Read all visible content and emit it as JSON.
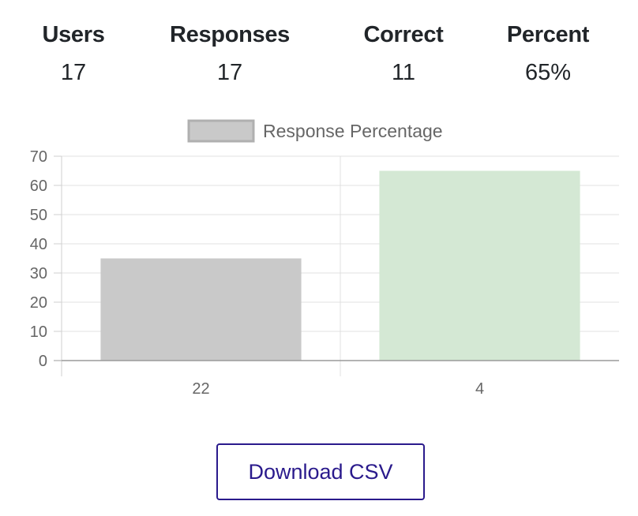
{
  "stats": {
    "users": {
      "label": "Users",
      "value": "17"
    },
    "responses": {
      "label": "Responses",
      "value": "17"
    },
    "correct": {
      "label": "Correct",
      "value": "11"
    },
    "percent": {
      "label": "Percent",
      "value": "65%"
    }
  },
  "chart_data": {
    "type": "bar",
    "categories": [
      "22",
      "4"
    ],
    "series": [
      {
        "name": "Response Percentage",
        "values": [
          35,
          65
        ],
        "colors": [
          "#c9c9c9",
          "#d4e8d4"
        ]
      }
    ],
    "ylim": [
      0,
      70
    ],
    "yticks": [
      0,
      10,
      20,
      30,
      40,
      50,
      60,
      70
    ],
    "grid": true,
    "legend": "top",
    "legend_color": "#c9c9c9",
    "legend_border": "#b0b0b0"
  },
  "actions": {
    "download_label": "Download CSV"
  }
}
